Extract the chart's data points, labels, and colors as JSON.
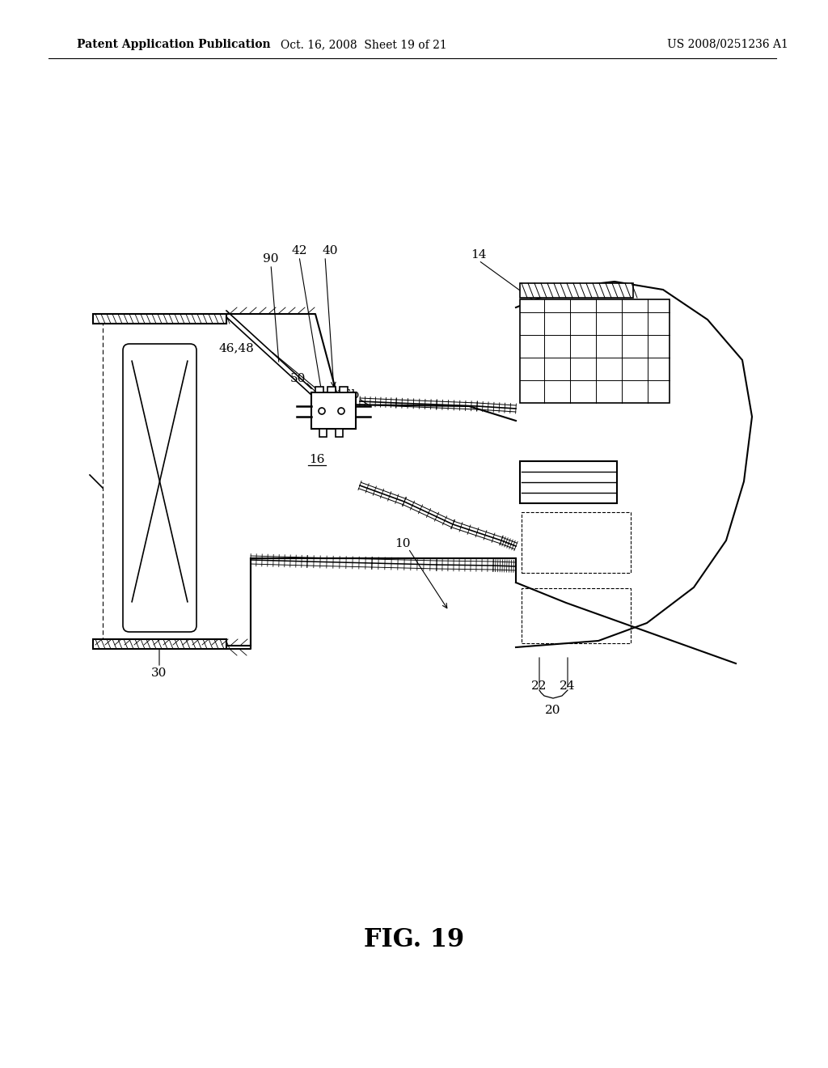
{
  "title": "FIG. 19",
  "header_left": "Patent Application Publication",
  "header_center": "Oct. 16, 2008  Sheet 19 of 21",
  "header_right": "US 2008/0251236 A1",
  "bg_color": "#ffffff",
  "line_color": "#000000",
  "label_fontsize": 11,
  "header_fontsize": 10,
  "title_fontsize": 22
}
